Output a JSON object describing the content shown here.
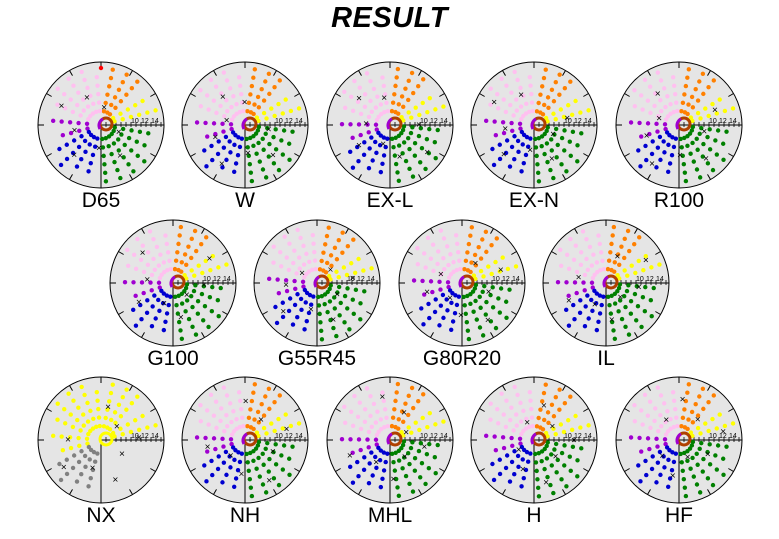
{
  "title": "RESULT",
  "chart_data": {
    "type": "scatter",
    "title": "RESULT",
    "subtype": "polar-color-map",
    "axis_tick_labels": [
      "10",
      "12",
      "14"
    ],
    "legend": "none",
    "colors": {
      "background": "#e5e5e5",
      "pink": "#ffc0f0",
      "orange": "#ff8000",
      "yellow": "#ffff00",
      "purple": "#a000d0",
      "blue": "#0000d0",
      "green": "#008000",
      "brown": "#b04000",
      "gray": "#808080",
      "red": "#ff0000"
    },
    "panels": [
      {
        "label": "D65"
      },
      {
        "label": "W"
      },
      {
        "label": "EX-L"
      },
      {
        "label": "EX-N"
      },
      {
        "label": "R100"
      },
      {
        "label": "G100"
      },
      {
        "label": "G55R45"
      },
      {
        "label": "G80R20"
      },
      {
        "label": "IL"
      },
      {
        "label": "NX"
      },
      {
        "label": "NH"
      },
      {
        "label": "MHL"
      },
      {
        "label": "H"
      },
      {
        "label": "HF"
      }
    ]
  }
}
